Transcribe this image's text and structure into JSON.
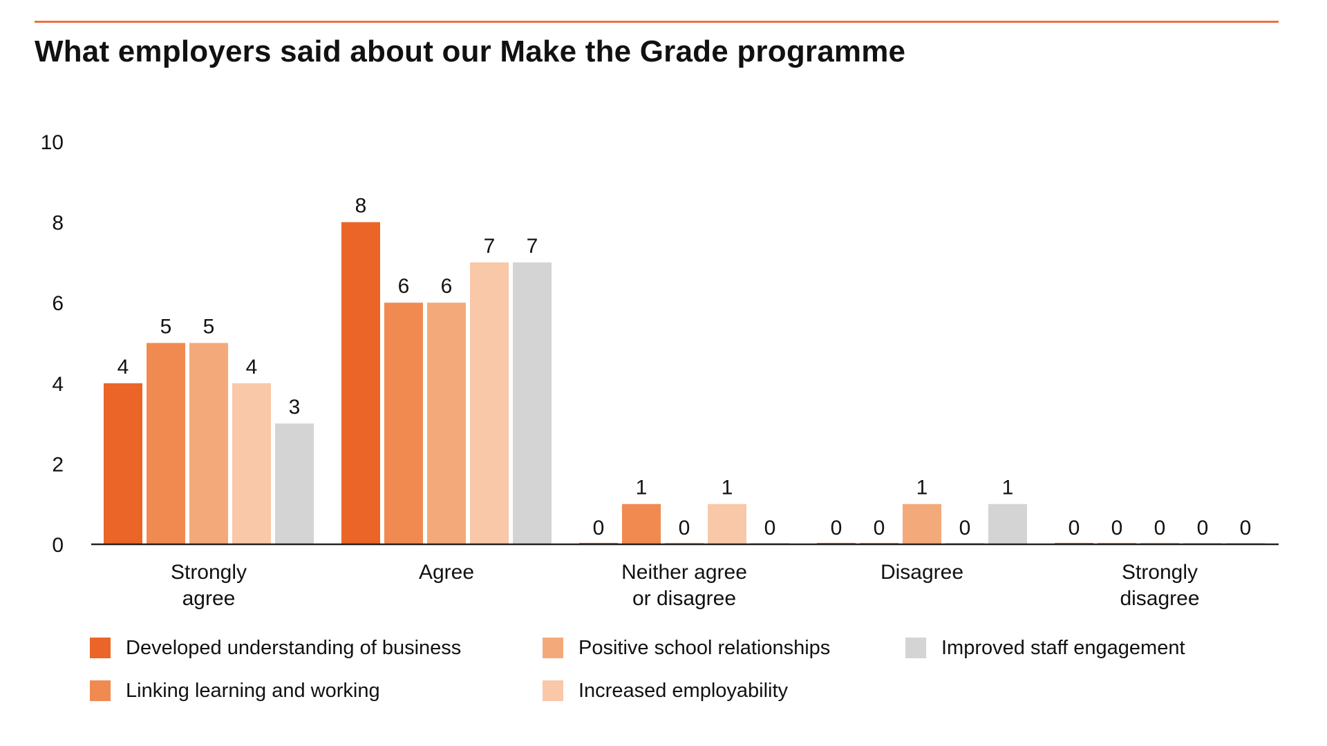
{
  "title": "What employers said about our Make the Grade programme",
  "chart_data": {
    "type": "bar",
    "title": "What employers said about our Make the Grade programme",
    "xlabel": "",
    "ylabel": "",
    "ylim": [
      0,
      10
    ],
    "yticks": [
      "0",
      "2",
      "4",
      "6",
      "8",
      "10"
    ],
    "grid": false,
    "legend_position": "bottom",
    "categories": [
      [
        "Strongly",
        "agree"
      ],
      [
        "Agree"
      ],
      [
        "Neither agree",
        "or disagree"
      ],
      [
        "Disagree"
      ],
      [
        "Strongly",
        "disagree"
      ]
    ],
    "series": [
      {
        "name": "Developed understanding of business",
        "color": "#ea6527",
        "values": [
          4,
          8,
          0,
          0,
          0
        ]
      },
      {
        "name": "Linking learning and working",
        "color": "#f08a51",
        "values": [
          5,
          6,
          1,
          0,
          0
        ]
      },
      {
        "name": "Positive school relationships",
        "color": "#f4a97a",
        "values": [
          5,
          6,
          0,
          1,
          0
        ]
      },
      {
        "name": "Increased employability",
        "color": "#f8c8a8",
        "values": [
          4,
          7,
          1,
          0,
          0
        ]
      },
      {
        "name": "Improved staff engagement",
        "color": "#d4d4d4",
        "values": [
          3,
          7,
          0,
          1,
          0
        ]
      }
    ]
  },
  "legend_order": [
    0,
    2,
    4,
    1,
    3
  ]
}
